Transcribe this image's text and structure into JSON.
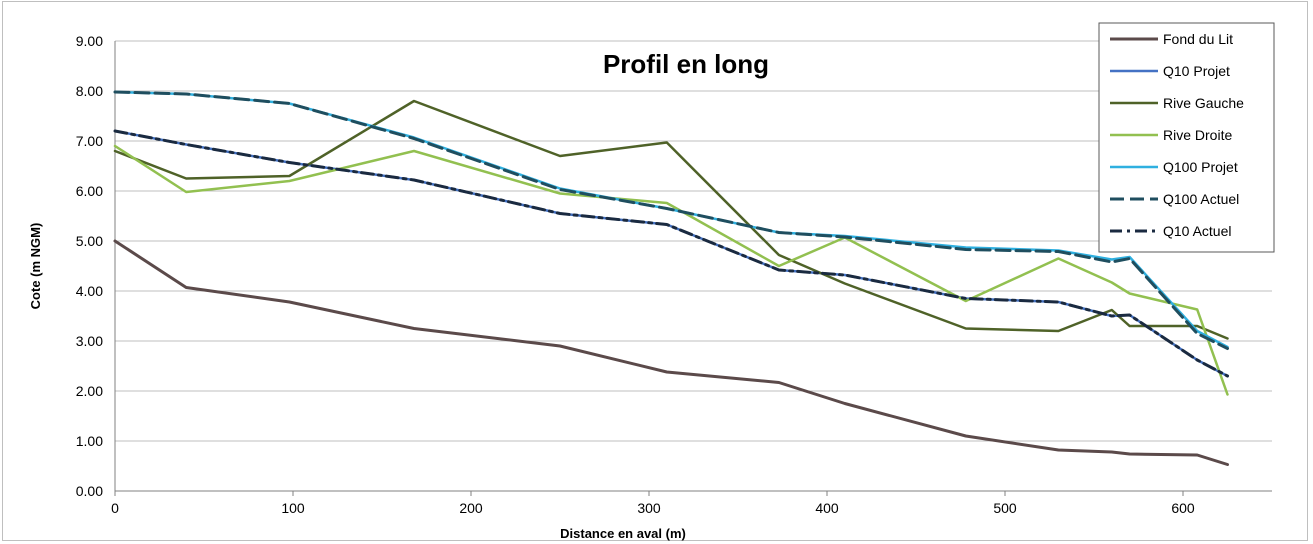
{
  "chart_data": {
    "type": "line",
    "title": "Profil en long",
    "xlabel": "Distance en aval (m)",
    "ylabel": "Cote (m NGM)",
    "xlim": [
      0,
      650
    ],
    "ylim": [
      0,
      9
    ],
    "x_ticks": [
      "0",
      "100",
      "200",
      "300",
      "400",
      "500",
      "600"
    ],
    "x_tick_values": [
      0,
      100,
      200,
      300,
      400,
      500,
      600
    ],
    "y_ticks": [
      "0.00",
      "1.00",
      "2.00",
      "3.00",
      "4.00",
      "5.00",
      "6.00",
      "7.00",
      "8.00",
      "9.00"
    ],
    "y_tick_values": [
      0,
      1,
      2,
      3,
      4,
      5,
      6,
      7,
      8,
      9
    ],
    "grid": "horizontal",
    "legend_position": "top-right",
    "series": [
      {
        "name": "Fond du Lit",
        "color": "#5b4a4a",
        "dash": "solid",
        "points": [
          [
            0,
            5.0
          ],
          [
            40,
            4.07
          ],
          [
            98,
            3.78
          ],
          [
            168,
            3.25
          ],
          [
            250,
            2.9
          ],
          [
            310,
            2.38
          ],
          [
            373,
            2.17
          ],
          [
            410,
            1.75
          ],
          [
            478,
            1.1
          ],
          [
            530,
            0.82
          ],
          [
            560,
            0.78
          ],
          [
            570,
            0.74
          ],
          [
            608,
            0.72
          ],
          [
            625,
            0.53
          ]
        ]
      },
      {
        "name": "Q10 Projet",
        "color": "#4472c4",
        "dash": "solid",
        "points": [
          [
            0,
            7.2
          ],
          [
            40,
            6.93
          ],
          [
            98,
            6.57
          ],
          [
            168,
            6.22
          ],
          [
            250,
            5.55
          ],
          [
            310,
            5.33
          ],
          [
            373,
            4.42
          ],
          [
            410,
            4.32
          ],
          [
            478,
            3.85
          ],
          [
            530,
            3.78
          ],
          [
            560,
            3.5
          ],
          [
            570,
            3.52
          ],
          [
            608,
            2.62
          ],
          [
            625,
            2.3
          ]
        ]
      },
      {
        "name": "Rive Gauche",
        "color": "#4f6228",
        "dash": "solid",
        "points": [
          [
            0,
            6.8
          ],
          [
            40,
            6.25
          ],
          [
            98,
            6.3
          ],
          [
            168,
            7.8
          ],
          [
            250,
            6.7
          ],
          [
            310,
            6.97
          ],
          [
            373,
            4.72
          ],
          [
            410,
            4.15
          ],
          [
            478,
            3.25
          ],
          [
            530,
            3.2
          ],
          [
            560,
            3.62
          ],
          [
            570,
            3.3
          ],
          [
            608,
            3.3
          ],
          [
            625,
            3.05
          ]
        ]
      },
      {
        "name": "Rive Droite",
        "color": "#92c050",
        "dash": "solid",
        "points": [
          [
            0,
            6.9
          ],
          [
            40,
            5.98
          ],
          [
            98,
            6.2
          ],
          [
            168,
            6.8
          ],
          [
            250,
            5.95
          ],
          [
            310,
            5.76
          ],
          [
            373,
            4.5
          ],
          [
            410,
            5.07
          ],
          [
            478,
            3.8
          ],
          [
            530,
            4.65
          ],
          [
            560,
            4.17
          ],
          [
            570,
            3.95
          ],
          [
            608,
            3.63
          ],
          [
            625,
            1.93
          ]
        ]
      },
      {
        "name": "Q100 Projet",
        "color": "#2fb0e0",
        "dash": "solid",
        "points": [
          [
            0,
            7.98
          ],
          [
            40,
            7.94
          ],
          [
            98,
            7.75
          ],
          [
            168,
            7.07
          ],
          [
            250,
            6.05
          ],
          [
            310,
            5.65
          ],
          [
            373,
            5.17
          ],
          [
            410,
            5.1
          ],
          [
            478,
            4.87
          ],
          [
            530,
            4.81
          ],
          [
            560,
            4.63
          ],
          [
            570,
            4.68
          ],
          [
            608,
            3.2
          ],
          [
            625,
            2.88
          ]
        ]
      },
      {
        "name": "Q100 Actuel",
        "color": "#1f4e5f",
        "dash": "dash",
        "points": [
          [
            0,
            7.98
          ],
          [
            40,
            7.94
          ],
          [
            98,
            7.75
          ],
          [
            168,
            7.05
          ],
          [
            250,
            6.03
          ],
          [
            310,
            5.65
          ],
          [
            373,
            5.17
          ],
          [
            410,
            5.08
          ],
          [
            478,
            4.83
          ],
          [
            530,
            4.79
          ],
          [
            560,
            4.58
          ],
          [
            570,
            4.65
          ],
          [
            608,
            3.15
          ],
          [
            625,
            2.85
          ]
        ]
      },
      {
        "name": "Q10 Actuel",
        "color": "#1a2a40",
        "dash": "dashdot",
        "points": [
          [
            0,
            7.2
          ],
          [
            40,
            6.93
          ],
          [
            98,
            6.57
          ],
          [
            168,
            6.22
          ],
          [
            250,
            5.55
          ],
          [
            310,
            5.33
          ],
          [
            373,
            4.42
          ],
          [
            410,
            4.32
          ],
          [
            478,
            3.85
          ],
          [
            530,
            3.78
          ],
          [
            560,
            3.5
          ],
          [
            570,
            3.52
          ],
          [
            608,
            2.62
          ],
          [
            625,
            2.3
          ]
        ]
      }
    ]
  }
}
